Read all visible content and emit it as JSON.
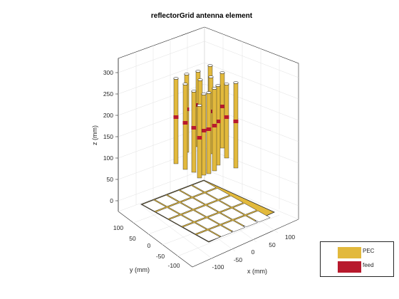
{
  "title": "reflectorGrid antenna element",
  "axes": {
    "xlabel": "x (mm)",
    "ylabel": "y (mm)",
    "zlabel": "z (mm)",
    "z_ticks": [
      "0",
      "50",
      "100",
      "150",
      "200",
      "250",
      "300"
    ],
    "x_ticks": [
      "-100",
      "-50",
      "0",
      "50",
      "100"
    ],
    "y_ticks": [
      "100",
      "50",
      "0",
      "-50",
      "-100"
    ]
  },
  "legend": {
    "items": [
      {
        "label": "PEC",
        "color": "#e2b93c"
      },
      {
        "label": "feed",
        "color": "#b81a2d"
      }
    ]
  },
  "colors": {
    "pec": "#e2b93c",
    "feed": "#b81a2d",
    "grid": "#dcdcdc",
    "axis": "#262626"
  }
}
